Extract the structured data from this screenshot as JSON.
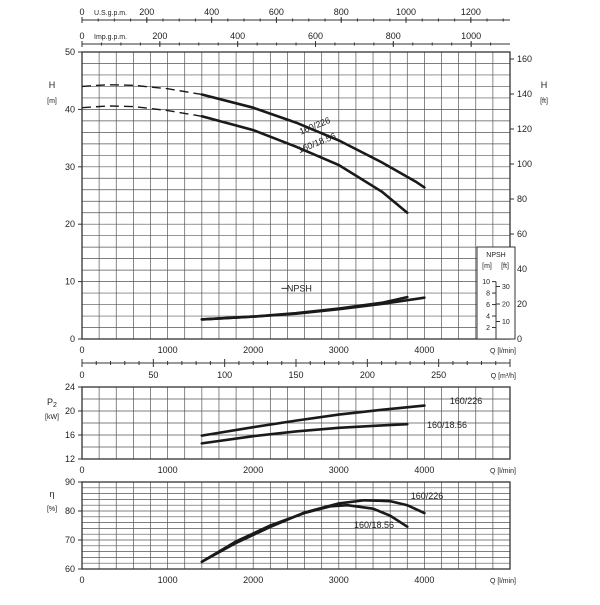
{
  "chart_data": [
    {
      "type": "line",
      "name": "head",
      "ylabel": "H",
      "yunit": "[m]",
      "ylabel_right": "H",
      "yunit_right": "[ft]",
      "xlabel": "Q [l/min]",
      "xlim": [
        0,
        5000
      ],
      "ylim": [
        0,
        50
      ],
      "ylim_right": [
        0,
        164
      ],
      "x_ticks": [
        0,
        1000,
        2000,
        3000,
        4000
      ],
      "y_ticks": [
        0,
        10,
        20,
        30,
        40,
        50
      ],
      "y_ticks_right": [
        0,
        20,
        40,
        60,
        80,
        100,
        120,
        140,
        160
      ],
      "top_axes": [
        {
          "label": "U.S.g.p.m.",
          "ticks": [
            0,
            200,
            400,
            600,
            800,
            1000,
            1200
          ],
          "factor": 0.264172
        },
        {
          "label": "Imp.g.p.m.",
          "ticks": [
            0,
            200,
            400,
            600,
            800,
            1000
          ],
          "factor": 0.219969
        }
      ],
      "grid": true,
      "series": [
        {
          "name": "160/226",
          "label": "160/226",
          "points": [
            [
              0,
              44.0
            ],
            [
              300,
              44.3
            ],
            [
              600,
              44.2
            ],
            [
              1000,
              43.6
            ],
            [
              1400,
              42.6
            ],
            [
              2000,
              40.3
            ],
            [
              2500,
              37.7
            ],
            [
              3000,
              34.6
            ],
            [
              3500,
              30.8
            ],
            [
              3900,
              27.4
            ],
            [
              4000,
              26.4
            ]
          ],
          "dashed_until": 1400
        },
        {
          "name": "160/18.56",
          "label": "160/18.56",
          "points": [
            [
              0,
              40.3
            ],
            [
              300,
              40.6
            ],
            [
              600,
              40.5
            ],
            [
              1000,
              39.8
            ],
            [
              1400,
              38.8
            ],
            [
              2000,
              36.4
            ],
            [
              2500,
              33.5
            ],
            [
              3000,
              30.3
            ],
            [
              3500,
              25.7
            ],
            [
              3800,
              22.0
            ]
          ],
          "dashed_until": 1400
        }
      ],
      "npsh": {
        "label": "NPSH",
        "axis_label": "NPSH",
        "unit_m": "[m]",
        "unit_ft": "[ft]",
        "ticks_m": [
          2,
          4,
          6,
          8,
          10
        ],
        "ticks_ft": [
          10,
          20,
          30
        ],
        "curves": [
          {
            "points": [
              [
                1400,
                3.4
              ],
              [
                2000,
                3.9
              ],
              [
                2500,
                4.5
              ],
              [
                3000,
                5.3
              ],
              [
                3500,
                6.3
              ],
              [
                3800,
                7.3
              ]
            ]
          },
          {
            "points": [
              [
                1400,
                3.4
              ],
              [
                2000,
                3.9
              ],
              [
                2500,
                4.4
              ],
              [
                3000,
                5.2
              ],
              [
                3500,
                6.1
              ],
              [
                4000,
                7.2
              ]
            ]
          }
        ]
      }
    },
    {
      "type": "line",
      "name": "flow-m3h",
      "xlabel": "Q [m³/h]",
      "xlim": [
        0,
        300
      ],
      "x_ticks": [
        0,
        50,
        100,
        150,
        200,
        250
      ]
    },
    {
      "type": "line",
      "name": "power",
      "ylabel": "P",
      "ylabel_sub": "2",
      "yunit": "[kW]",
      "xlabel": "Q [l/min]",
      "xlim": [
        0,
        5000
      ],
      "ylim": [
        12,
        24
      ],
      "x_ticks": [
        0,
        1000,
        2000,
        3000,
        4000
      ],
      "y_ticks": [
        12,
        16,
        20,
        24
      ],
      "grid": true,
      "series": [
        {
          "name": "160/226",
          "label": "160/226",
          "points": [
            [
              1400,
              15.9
            ],
            [
              2000,
              17.3
            ],
            [
              2500,
              18.4
            ],
            [
              3000,
              19.4
            ],
            [
              3500,
              20.2
            ],
            [
              4000,
              20.9
            ]
          ]
        },
        {
          "name": "160/18.56",
          "label": "160/18.56",
          "points": [
            [
              1400,
              14.6
            ],
            [
              2000,
              15.8
            ],
            [
              2500,
              16.6
            ],
            [
              3000,
              17.2
            ],
            [
              3500,
              17.6
            ],
            [
              3800,
              17.8
            ]
          ]
        }
      ]
    },
    {
      "type": "line",
      "name": "efficiency",
      "ylabel": "η",
      "yunit": "[%]",
      "xlabel": "Q [l/min]",
      "xlim": [
        0,
        5000
      ],
      "ylim": [
        60,
        90
      ],
      "x_ticks": [
        0,
        1000,
        2000,
        3000,
        4000
      ],
      "y_ticks": [
        60,
        70,
        80,
        90
      ],
      "grid": true,
      "series": [
        {
          "name": "160/226",
          "label": "160/226",
          "points": [
            [
              1400,
              62.5
            ],
            [
              1800,
              69.0
            ],
            [
              2200,
              74.5
            ],
            [
              2600,
              79.5
            ],
            [
              3000,
              82.6
            ],
            [
              3300,
              83.7
            ],
            [
              3600,
              83.4
            ],
            [
              3800,
              82.0
            ],
            [
              4000,
              79.3
            ]
          ]
        },
        {
          "name": "160/18.56",
          "label": "160/18.56",
          "points": [
            [
              1400,
              62.5
            ],
            [
              1800,
              69.5
            ],
            [
              2200,
              75.0
            ],
            [
              2600,
              79.3
            ],
            [
              2900,
              81.6
            ],
            [
              3100,
              82.0
            ],
            [
              3400,
              80.8
            ],
            [
              3600,
              78.4
            ],
            [
              3800,
              74.6
            ]
          ]
        }
      ]
    }
  ]
}
